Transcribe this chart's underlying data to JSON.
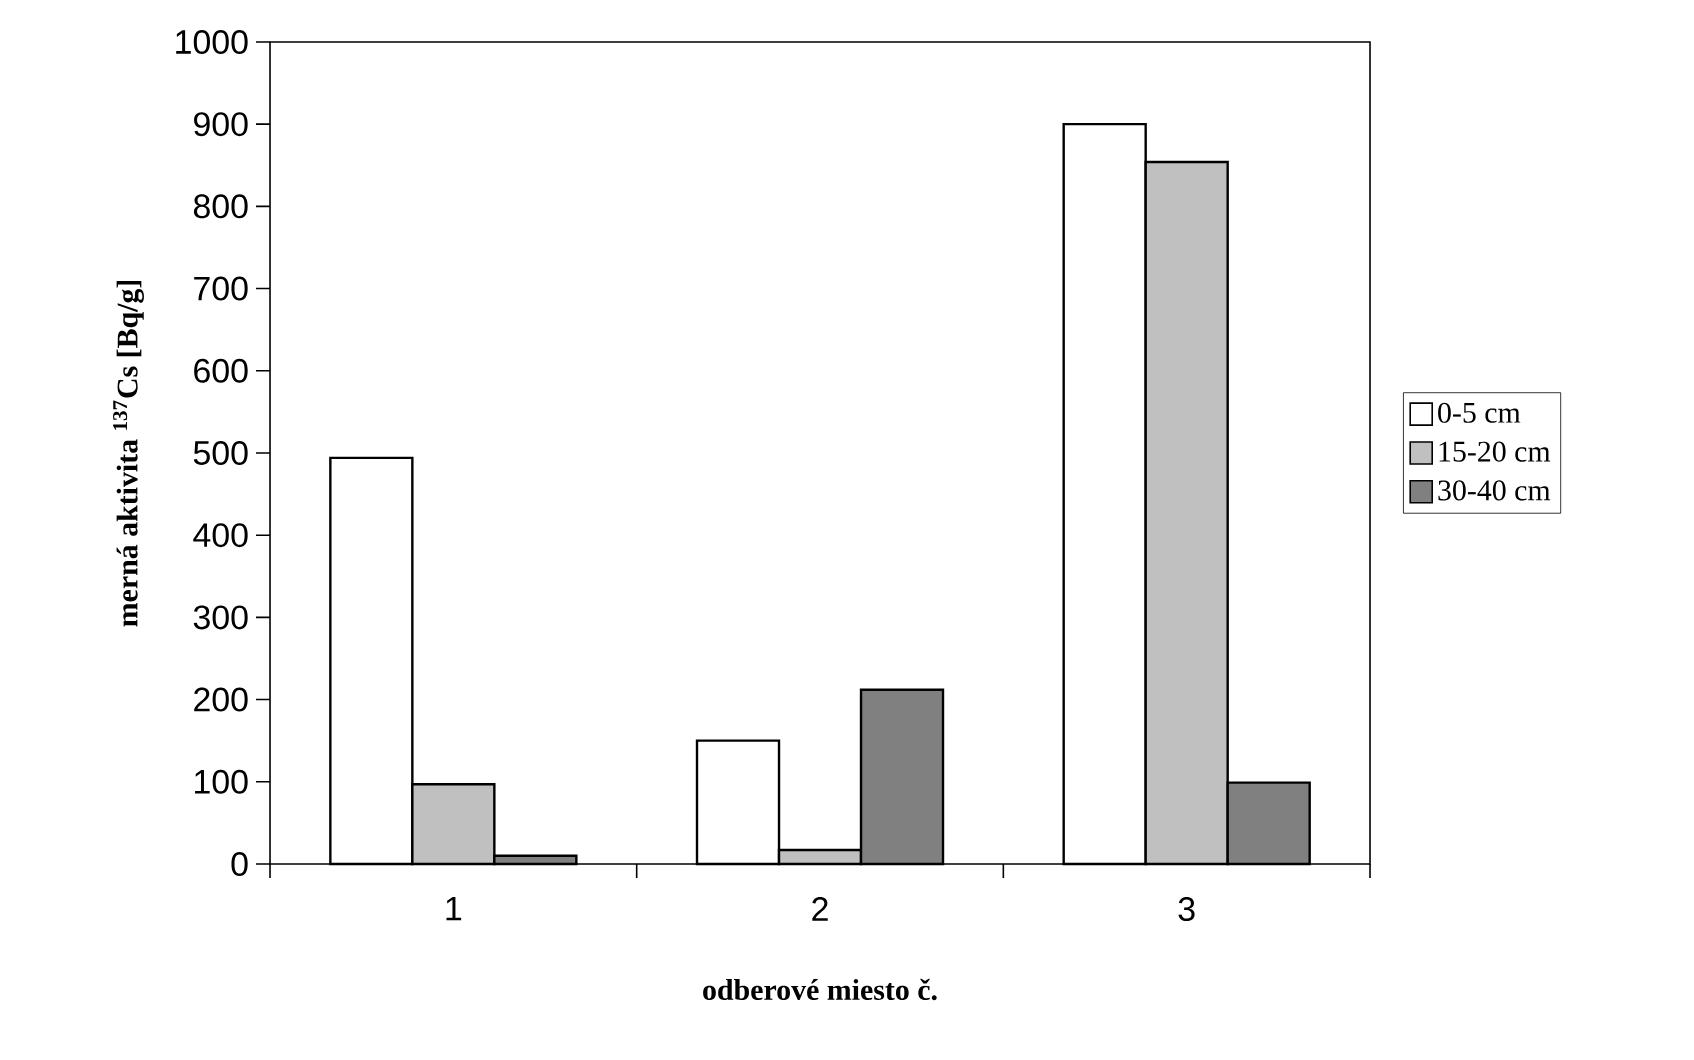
{
  "chart_data": {
    "type": "bar",
    "xlabel": "odberové miesto č.",
    "ylabel": "merná aktivita $^{137}$Cs [Bq/g]",
    "categories": [
      "1",
      "2",
      "3"
    ],
    "series": [
      {
        "name": "0-5 cm",
        "color": "#ffffff",
        "values": [
          494,
          150,
          900
        ]
      },
      {
        "name": "15-20 cm",
        "color": "#c0c0c0",
        "values": [
          97,
          17,
          854
        ]
      },
      {
        "name": "30-40 cm",
        "color": "#808080",
        "values": [
          10,
          212,
          99
        ]
      }
    ],
    "ylim": [
      0,
      1000
    ],
    "yticks": [
      0,
      100,
      200,
      300,
      400,
      500,
      600,
      700,
      800,
      900,
      1000
    ],
    "legend": "right"
  }
}
